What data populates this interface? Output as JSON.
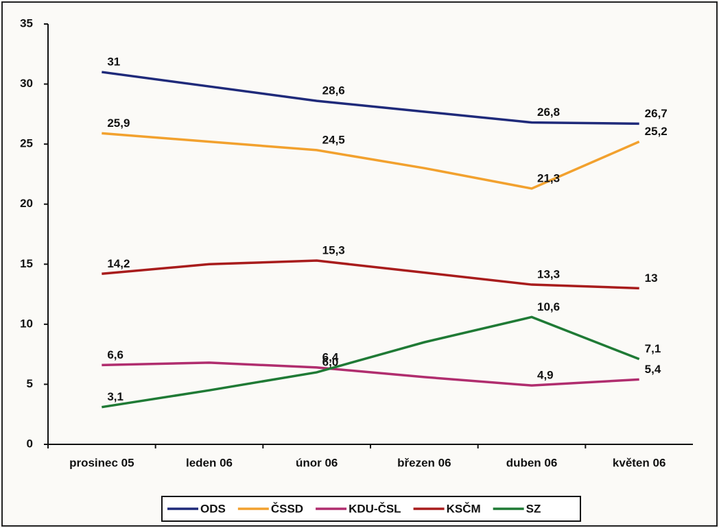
{
  "chart_data": {
    "type": "line",
    "categories": [
      "prosinec 05",
      "leden 06",
      "únor 06",
      "březen 06",
      "duben 06",
      "květen 06"
    ],
    "series": [
      {
        "name": "ODS",
        "color": "#1f2a7a",
        "values": [
          31,
          29.8,
          28.6,
          27.7,
          26.8,
          26.7
        ],
        "value_labels": [
          "31",
          null,
          "28,6",
          null,
          "26,8",
          "26,7"
        ]
      },
      {
        "name": "ČSSD",
        "color": "#f2a12e",
        "values": [
          25.9,
          25.2,
          24.5,
          23,
          21.3,
          25.2
        ],
        "value_labels": [
          "25,9",
          null,
          "24,5",
          null,
          "21,3",
          "25,2"
        ]
      },
      {
        "name": "KDU-ČSL",
        "color": "#b02d6e",
        "values": [
          6.6,
          6.8,
          6.4,
          5.6,
          4.9,
          5.4
        ],
        "value_labels": [
          "6,6",
          null,
          "6,4",
          null,
          "4,9",
          "5,4"
        ]
      },
      {
        "name": "KSČM",
        "color": "#a81c1c",
        "values": [
          14.2,
          15,
          15.3,
          14.3,
          13.3,
          13
        ],
        "value_labels": [
          "14,2",
          null,
          "15,3",
          null,
          "13,3",
          "13"
        ]
      },
      {
        "name": "SZ",
        "color": "#1f7a35",
        "values": [
          3.1,
          4.5,
          6,
          8.5,
          10.6,
          7.1
        ],
        "value_labels": [
          "3,1",
          null,
          "6,0",
          null,
          "10,6",
          "7,1"
        ]
      }
    ],
    "ylim": [
      0,
      35
    ],
    "yticks": [
      0,
      5,
      10,
      15,
      20,
      25,
      30,
      35
    ]
  }
}
